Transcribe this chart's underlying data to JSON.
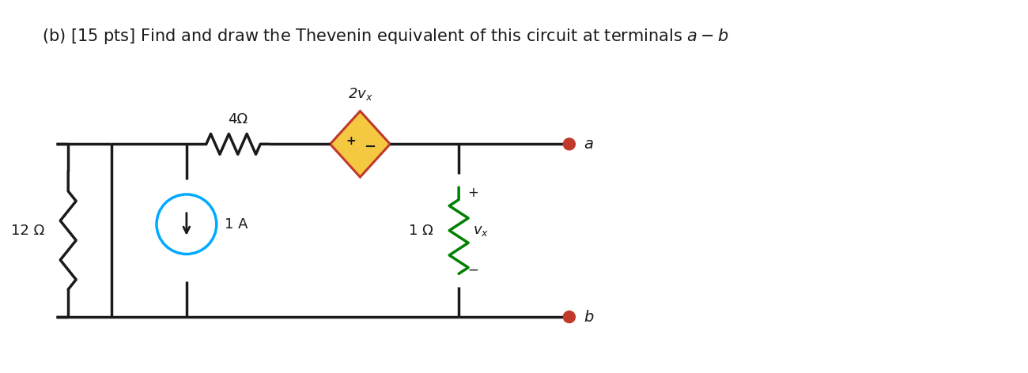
{
  "title": "(b) [15 pts] Find and draw the Thevenin equivalent of this circuit at terminals $a - b$",
  "title_fontsize": 15,
  "bg_color": "#ffffff",
  "line_color": "#1a1a1a",
  "wire_lw": 2.5,
  "resistor_color": "#1a1a1a",
  "current_source_color": "#00aaff",
  "dependent_source_color_fill": "#f5c842",
  "dependent_source_color_edge": "#c0392b",
  "resistor_1_label": "4Ω",
  "resistor_2_label": "1 Ω",
  "current_source_label": "1 A",
  "resistor_left_label": "12 Ω",
  "dependent_source_label": "2$v_x$",
  "vx_label": "$v_x$",
  "terminal_a_label": "$a$",
  "terminal_b_label": "$b$",
  "plus_label": "+",
  "minus_label": "−",
  "vx_plus": "+",
  "vx_minus": "−"
}
